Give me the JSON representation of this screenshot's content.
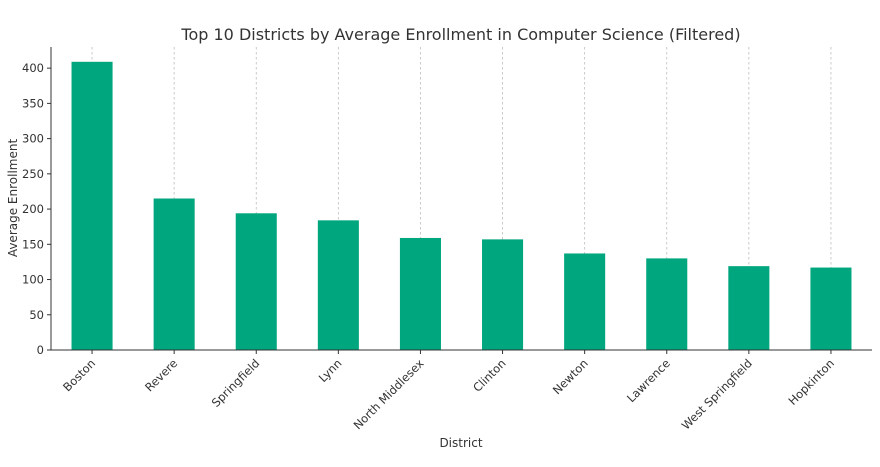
{
  "chart_data": {
    "type": "bar",
    "title": "Top 10 Districts by Average Enrollment in Computer Science (Filtered)",
    "xlabel": "District",
    "ylabel": "Average Enrollment",
    "categories": [
      "Boston",
      "Revere",
      "Springfield",
      "Lynn",
      "North Middlesex",
      "Clinton",
      "Newton",
      "Lawrence",
      "West Springfield",
      "Hopkinton"
    ],
    "values": [
      409,
      215,
      194,
      184,
      159,
      157,
      137,
      130,
      119,
      117
    ],
    "ylim": [
      0,
      430
    ],
    "yticks": [
      0,
      50,
      100,
      150,
      200,
      250,
      300,
      350,
      400
    ],
    "grid": "vertical-dashed",
    "bar_color": "#00a67e"
  }
}
